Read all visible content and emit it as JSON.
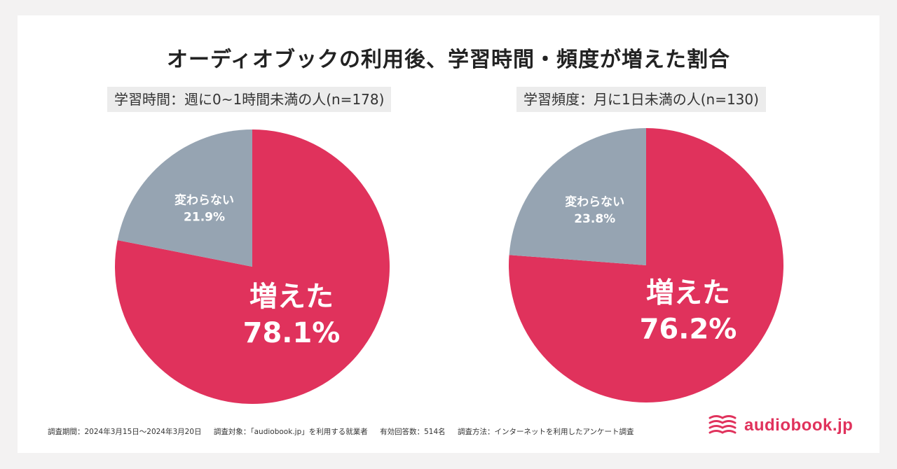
{
  "title": "オーディオブックの利用後、学習時間・頻度が増えた割合",
  "colors": {
    "increased": "#e0325c",
    "unchanged": "#96a4b2",
    "brand": "#e0325c"
  },
  "chart_data": [
    {
      "type": "pie",
      "title": "学習時間：週に0~1時間未満の人(n=178)",
      "slices": [
        {
          "label": "増えた",
          "value": 78.1,
          "value_label": "78.1%",
          "color": "#e0325c"
        },
        {
          "label": "変わらない",
          "value": 21.9,
          "value_label": "21.9%",
          "color": "#96a4b2"
        }
      ]
    },
    {
      "type": "pie",
      "title": "学習頻度：月に1日未満の人(n=130)",
      "slices": [
        {
          "label": "増えた",
          "value": 76.2,
          "value_label": "76.2%",
          "color": "#e0325c"
        },
        {
          "label": "変わらない",
          "value": 23.8,
          "value_label": "23.8%",
          "color": "#96a4b2"
        }
      ]
    }
  ],
  "footer": {
    "period": "調査期間：2024年3月15日〜2024年3月20日",
    "target": "調査対象：「audiobook.jp」を利用する就業者",
    "responses": "有効回答数：514名",
    "method": "調査方法：インターネットを利用したアンケート調査"
  },
  "logo": {
    "text": "audiobook.jp",
    "icon": "book-waves-icon"
  }
}
